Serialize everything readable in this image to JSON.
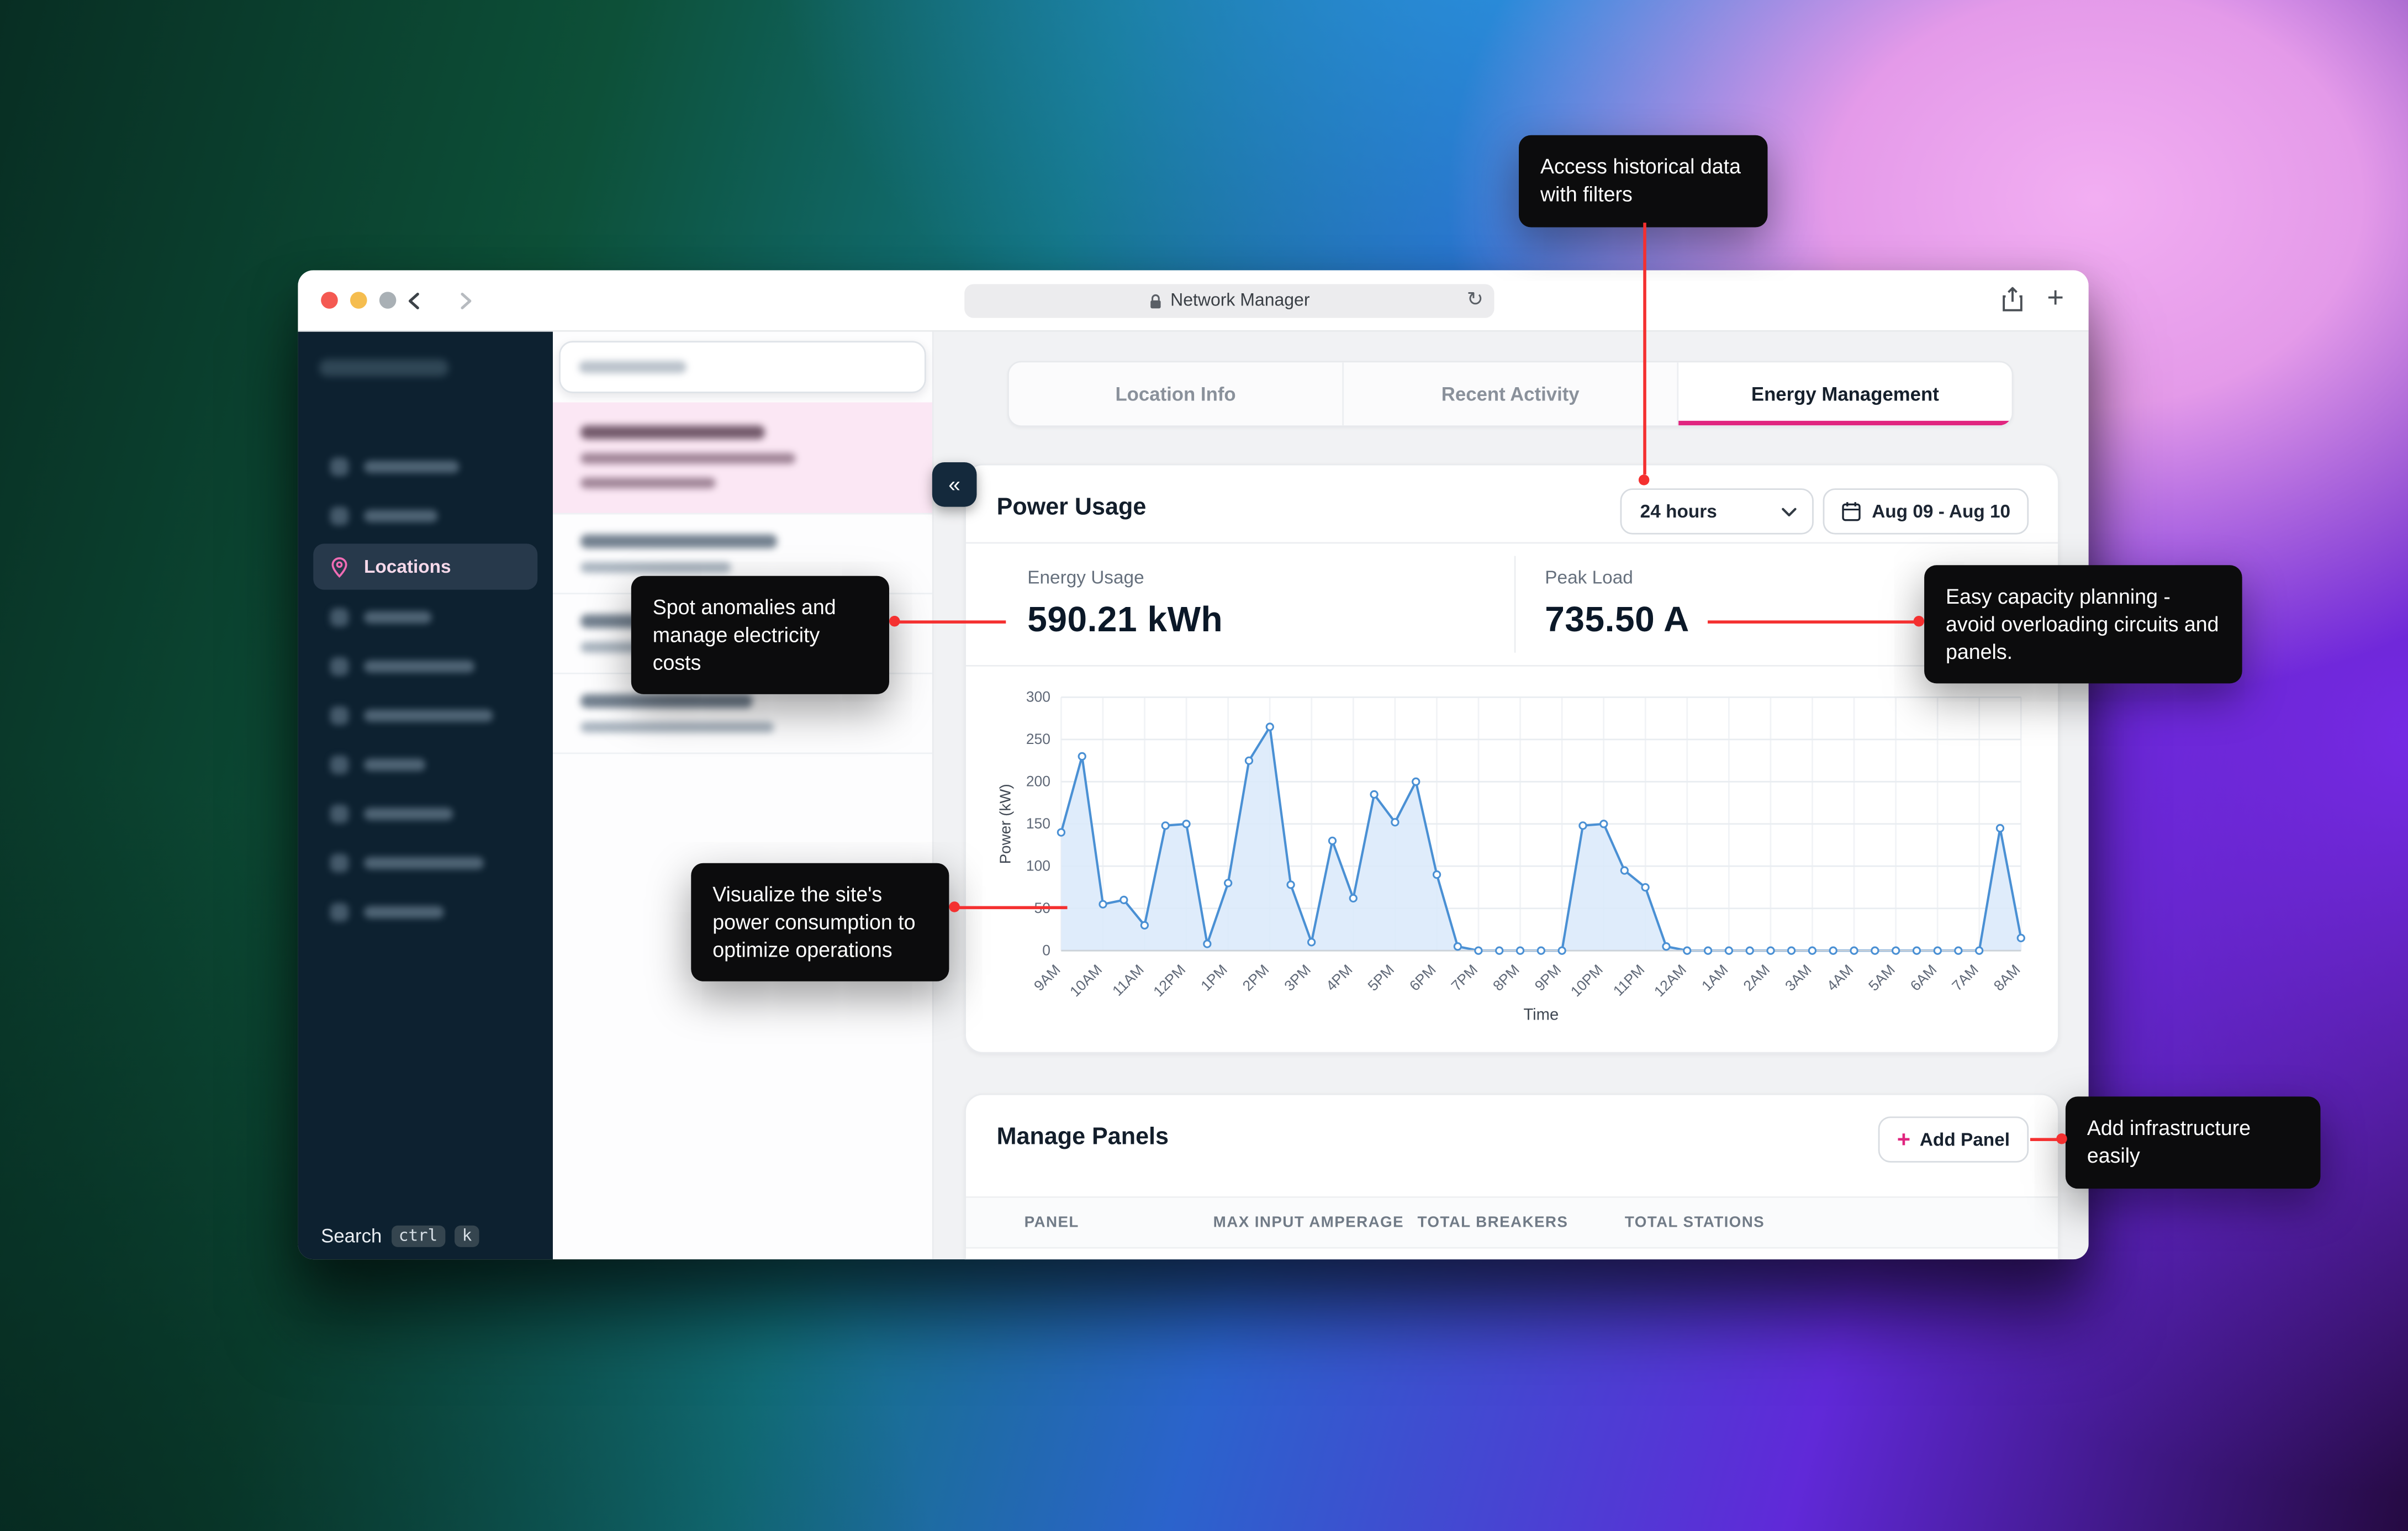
{
  "colors": {
    "accent_pink": "#e0257f",
    "callout_red": "#f43030",
    "chart_line": "#4a90d4",
    "chart_fill": "#d9e9fa",
    "sidebar_bg": "#0d2130"
  },
  "browser": {
    "url_text": "Network Manager",
    "icons": {
      "refresh": "↻",
      "new_tab": "+"
    }
  },
  "sidebar": {
    "active_item_label": "Locations",
    "search_label": "Search",
    "shortcut_keys": [
      "ctrl",
      "k"
    ]
  },
  "panel_toggle": {
    "collapse_icon": "«"
  },
  "tabs": [
    {
      "label": "Location Info",
      "active": false
    },
    {
      "label": "Recent Activity",
      "active": false
    },
    {
      "label": "Energy Management",
      "active": true
    }
  ],
  "power_usage": {
    "title": "Power Usage",
    "range_selector_value": "24 hours",
    "date_range_value": "Aug 09 - Aug 10",
    "stats": [
      {
        "label": "Energy Usage",
        "value": "590.21 kWh"
      },
      {
        "label": "Peak Load",
        "value": "735.50 A"
      }
    ]
  },
  "chart_data": {
    "type": "area",
    "title": "Power Usage",
    "xlabel": "Time",
    "ylabel": "Power (kW)",
    "ylim": [
      0,
      300
    ],
    "yticks": [
      0,
      50,
      100,
      150,
      200,
      250,
      300
    ],
    "x_tick_labels": [
      "9AM",
      "10AM",
      "11AM",
      "12PM",
      "1PM",
      "2PM",
      "3PM",
      "4PM",
      "5PM",
      "6PM",
      "7PM",
      "8PM",
      "9PM",
      "10PM",
      "11PM",
      "12AM",
      "1AM",
      "2AM",
      "3AM",
      "4AM",
      "5AM",
      "6AM",
      "7AM",
      "8AM"
    ],
    "sample_interval_minutes": 30,
    "values": [
      140,
      230,
      55,
      60,
      30,
      148,
      150,
      8,
      80,
      225,
      265,
      78,
      10,
      130,
      62,
      185,
      152,
      200,
      90,
      5,
      0,
      0,
      0,
      0,
      0,
      148,
      150,
      95,
      75,
      5,
      0,
      0,
      0,
      0,
      0,
      0,
      0,
      0,
      0,
      0,
      0,
      0,
      0,
      0,
      0,
      145,
      15
    ],
    "line_color": "#4a90d4",
    "fill_color": "#d9e9fa",
    "grid": true,
    "legend": false
  },
  "manage_panels": {
    "title": "Manage Panels",
    "add_button_label": "Add Panel",
    "add_icon": "+",
    "table_columns": [
      "PANEL",
      "MAX INPUT AMPERAGE",
      "TOTAL BREAKERS",
      "TOTAL STATIONS"
    ]
  },
  "callouts": [
    {
      "text": "Access historical data with filters"
    },
    {
      "text": "Spot anomalies and manage electricity costs"
    },
    {
      "text": "Easy capacity planning - avoid overloading circuits and panels."
    },
    {
      "text": "Visualize the site's power consumption to optimize operations"
    },
    {
      "text": "Add infrastructure easily"
    }
  ]
}
